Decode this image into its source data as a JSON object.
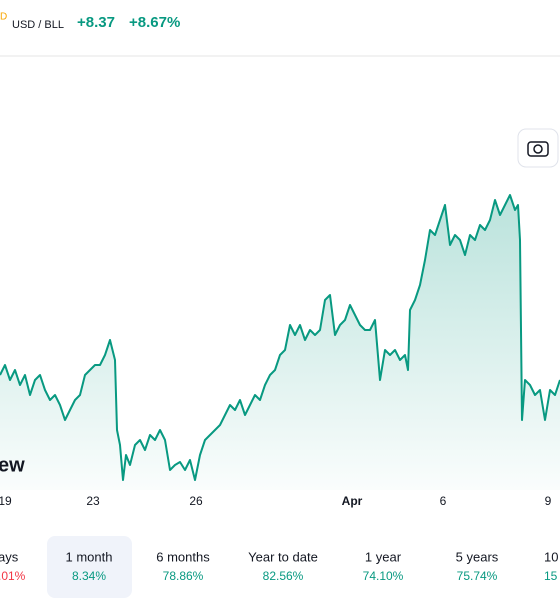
{
  "header": {
    "symbol_fragment": "D",
    "pair": "USD / BLL",
    "change": "+8.37",
    "change_percent": "+8.67%"
  },
  "chart_data": {
    "type": "line",
    "color": "#089981",
    "watermark": "ew",
    "xlim": [
      0,
      560
    ],
    "ylim": [
      10,
      53
    ],
    "xticks": [
      {
        "value": 5,
        "label": "19"
      },
      {
        "value": 93,
        "label": "23"
      },
      {
        "value": 196,
        "label": "26"
      },
      {
        "value": 352,
        "label": "Apr"
      },
      {
        "value": 443,
        "label": "6"
      },
      {
        "value": 548,
        "label": "9"
      }
    ],
    "x": [
      0,
      5,
      10,
      15,
      20,
      25,
      30,
      35,
      40,
      45,
      50,
      55,
      60,
      65,
      70,
      75,
      80,
      85,
      90,
      95,
      100,
      105,
      110,
      115,
      117,
      120,
      123,
      126,
      130,
      135,
      140,
      145,
      150,
      155,
      160,
      165,
      170,
      175,
      180,
      185,
      190,
      195,
      200,
      205,
      210,
      215,
      220,
      225,
      230,
      235,
      240,
      245,
      250,
      255,
      260,
      265,
      270,
      275,
      280,
      285,
      290,
      295,
      300,
      305,
      310,
      315,
      320,
      325,
      330,
      335,
      340,
      345,
      350,
      355,
      360,
      365,
      370,
      375,
      380,
      385,
      390,
      395,
      400,
      405,
      408,
      410,
      415,
      420,
      425,
      430,
      435,
      440,
      445,
      450,
      455,
      460,
      465,
      470,
      475,
      480,
      485,
      490,
      495,
      500,
      505,
      510,
      515,
      518,
      520,
      522,
      525,
      530,
      535,
      540,
      545,
      550,
      555,
      560
    ],
    "values": [
      21.5,
      22.5,
      21,
      22,
      20.5,
      21.5,
      19.5,
      21,
      21.5,
      20,
      19,
      19.5,
      18.5,
      17,
      18,
      19,
      19.5,
      21.5,
      22,
      22.5,
      22.5,
      23.5,
      25,
      23,
      16,
      14.5,
      11,
      13.5,
      12.5,
      14.5,
      15,
      14,
      15.5,
      15,
      16,
      15,
      12,
      12.5,
      12.8,
      12,
      13,
      11,
      13.5,
      15,
      15.5,
      16,
      16.5,
      17.5,
      18.5,
      18,
      19,
      17.5,
      18.5,
      19.5,
      19,
      20.5,
      21.5,
      22,
      23.5,
      24,
      26.5,
      25.5,
      26.5,
      25,
      26,
      25.5,
      26,
      29,
      29.5,
      25.5,
      26.5,
      27,
      28.5,
      27.5,
      26.5,
      26,
      26,
      27,
      21,
      24,
      23.5,
      24,
      23,
      23.5,
      22,
      28,
      29,
      30.5,
      33,
      36,
      35.5,
      37,
      38.5,
      34.5,
      35.5,
      35,
      33.5,
      35.5,
      35,
      36.5,
      36,
      37,
      39,
      37.5,
      38.5,
      39.5,
      38,
      38.5,
      35,
      17,
      21,
      20.5,
      19.5,
      20,
      17,
      20,
      19.5,
      21
    ]
  },
  "periods": [
    {
      "label": "ays",
      "change": ".01%",
      "color": "#f23645"
    },
    {
      "label": "1 month",
      "change": "8.34%",
      "color": "#089981",
      "selected": true
    },
    {
      "label": "6 months",
      "change": "78.86%",
      "color": "#089981"
    },
    {
      "label": "Year to date",
      "change": "82.56%",
      "color": "#089981"
    },
    {
      "label": "1 year",
      "change": "74.10%",
      "color": "#089981"
    },
    {
      "label": "5 years",
      "change": "75.74%",
      "color": "#089981"
    },
    {
      "label": "10",
      "change": "15",
      "color": "#089981"
    }
  ]
}
